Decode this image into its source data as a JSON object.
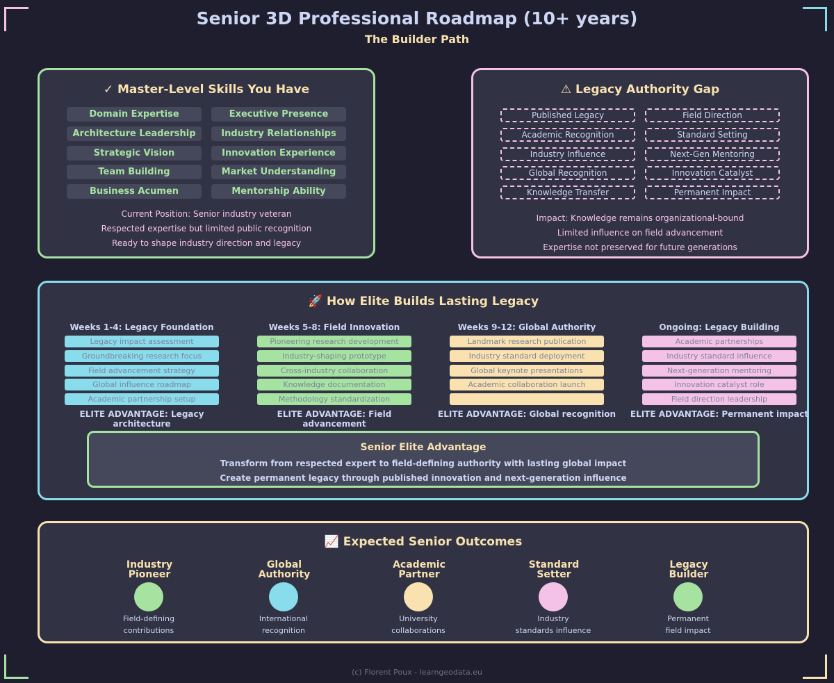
{
  "header": {
    "title": "Senior 3D Professional Roadmap (10+ years)",
    "subtitle": "The Builder Path"
  },
  "skills": {
    "title": "✓ Master-Level Skills You Have",
    "items": [
      "Domain Expertise",
      "Executive Presence",
      "Architecture Leadership",
      "Industry Relationships",
      "Strategic Vision",
      "Innovation Experience",
      "Team Building",
      "Market Understanding",
      "Business Acumen",
      "Mentorship Ability"
    ],
    "notes": [
      "Current Position: Senior industry veteran",
      "Respected expertise but limited public recognition",
      "Ready to shape industry direction and legacy"
    ]
  },
  "gap": {
    "title": "⚠ Legacy Authority Gap",
    "items": [
      "Published Legacy",
      "Field Direction",
      "Academic Recognition",
      "Standard Setting",
      "Industry Influence",
      "Next-Gen Mentoring",
      "Global Recognition",
      "Innovation Catalyst",
      "Knowledge Transfer",
      "Permanent Impact"
    ],
    "notes": [
      "Impact: Knowledge remains organizational-bound",
      "Limited influence on field advancement",
      "Expertise not preserved for future generations"
    ]
  },
  "elite": {
    "title": "🚀 How Elite Builds Lasting Legacy",
    "columns": [
      {
        "heading": "Weeks 1-4: Legacy Foundation",
        "color": "#89dceb",
        "tasks": [
          "Legacy impact assessment",
          "Groundbreaking research focus",
          "Field advancement strategy",
          "Global influence roadmap",
          "Academic partnership setup"
        ],
        "advantage": "ELITE ADVANTAGE: Legacy architecture"
      },
      {
        "heading": "Weeks 5-8: Field Innovation",
        "color": "#a6e3a1",
        "tasks": [
          "Pioneering research development",
          "Industry-shaping prototype",
          "Cross-industry collaboration",
          "Knowledge documentation",
          "Methodology standardization"
        ],
        "advantage": "ELITE ADVANTAGE: Field advancement"
      },
      {
        "heading": "Weeks 9-12: Global Authority",
        "color": "#f9e2af",
        "tasks": [
          "Landmark research publication",
          "Industry standard deployment",
          "Global keynote presentations",
          "Academic collaboration launch",
          ""
        ],
        "advantage": "ELITE ADVANTAGE: Global recognition"
      },
      {
        "heading": "Ongoing: Legacy Building",
        "color": "#f5c2e7",
        "tasks": [
          "Academic partnerships",
          "Industry standard influence",
          "Next-generation mentoring",
          "Innovation catalyst role",
          "Field direction leadership"
        ],
        "advantage": "ELITE ADVANTAGE: Permanent impact"
      }
    ],
    "advantage_box": {
      "title": "Senior Elite Advantage",
      "line1": "Transform from respected expert to field-defining authority with lasting global impact",
      "line2": "Create permanent legacy through published innovation and next-generation influence"
    }
  },
  "outcomes": {
    "title": "📈 Expected Senior Outcomes",
    "items": [
      {
        "title1": "Industry",
        "title2": "Pioneer",
        "color": "#a6e3a1",
        "desc1": "Field-defining",
        "desc2": "contributions"
      },
      {
        "title1": "Global",
        "title2": "Authority",
        "color": "#89dceb",
        "desc1": "International",
        "desc2": "recognition"
      },
      {
        "title1": "Academic",
        "title2": "Partner",
        "color": "#f9e2af",
        "desc1": "University",
        "desc2": "collaborations"
      },
      {
        "title1": "Standard",
        "title2": "Setter",
        "color": "#f5c2e7",
        "desc1": "Industry",
        "desc2": "standards influence"
      },
      {
        "title1": "Legacy",
        "title2": "Builder",
        "color": "#a6e3a1",
        "desc1": "Permanent",
        "desc2": "field impact"
      }
    ]
  },
  "footer": "(c) Florent Poux - learngeodata.eu"
}
